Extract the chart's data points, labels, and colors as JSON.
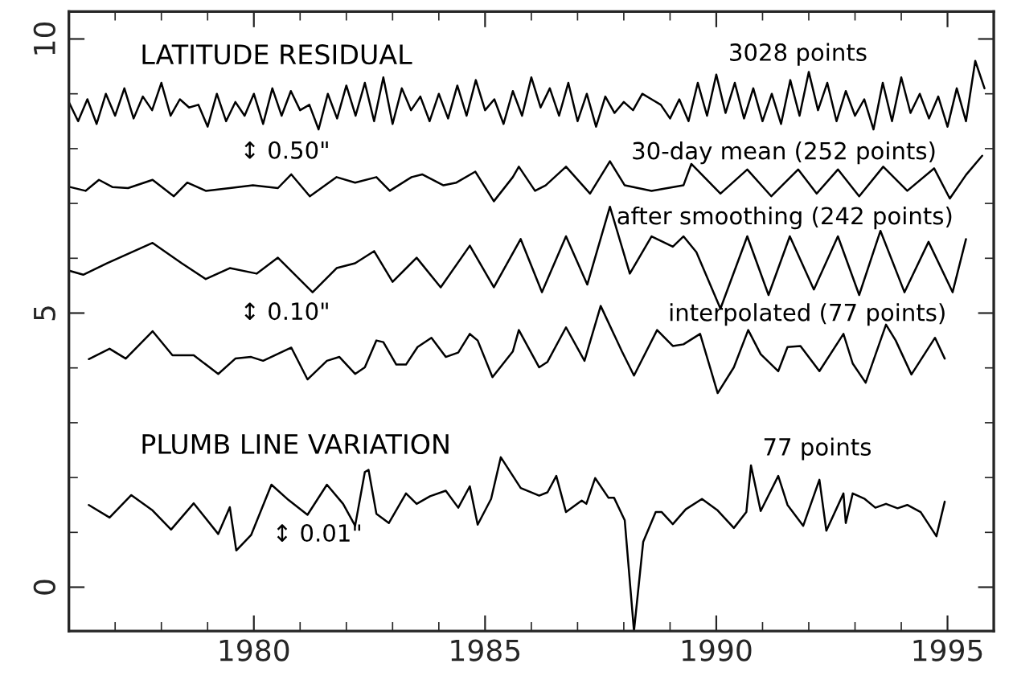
{
  "chart_data": {
    "type": "line",
    "xlim": [
      1976,
      1996
    ],
    "ylim": [
      -0.8,
      10.5
    ],
    "xticks": [
      1980,
      1985,
      1990,
      1995
    ],
    "yticks": [
      0,
      5,
      10
    ],
    "grid": false,
    "marker": "none",
    "line_style": "solid",
    "series": [
      {
        "color": "#000000",
        "x": [
          1976.0,
          1976.2,
          1976.4,
          1976.6,
          1976.8,
          1977.0,
          1977.2,
          1977.4,
          1977.6,
          1977.8,
          1978.0,
          1978.2,
          1978.4,
          1978.6,
          1978.8,
          1979.0,
          1979.2,
          1979.4,
          1979.6,
          1979.8,
          1980.0,
          1980.2,
          1980.4,
          1980.6,
          1980.8,
          1981.0,
          1981.2,
          1981.4,
          1981.6,
          1981.8,
          1982.0,
          1982.2,
          1982.4,
          1982.6,
          1982.8,
          1983.0,
          1983.2,
          1983.4,
          1983.6,
          1983.8,
          1984.0,
          1984.2,
          1984.4,
          1984.6,
          1984.8,
          1985.0,
          1985.2,
          1985.4,
          1985.6,
          1985.8,
          1986.0,
          1986.2,
          1986.4,
          1986.6,
          1986.8,
          1987.0,
          1987.2,
          1987.4,
          1987.6,
          1987.8,
          1988.0,
          1988.2,
          1988.4,
          1988.6,
          1988.8,
          1989.0,
          1989.2,
          1989.4,
          1989.6,
          1989.8,
          1990.0,
          1990.2,
          1990.4,
          1990.6,
          1990.8,
          1991.0,
          1991.2,
          1991.4,
          1991.6,
          1991.8,
          1992.0,
          1992.2,
          1992.4,
          1992.6,
          1992.8,
          1993.0,
          1993.2,
          1993.4,
          1993.6,
          1993.8,
          1994.0,
          1994.2,
          1994.4,
          1994.6,
          1994.8,
          1995.0,
          1995.2,
          1995.4,
          1995.6,
          1995.8
        ],
        "values": [
          8.85,
          8.5,
          8.9,
          8.45,
          9.0,
          8.6,
          9.1,
          8.55,
          8.95,
          8.7,
          9.2,
          8.6,
          8.9,
          8.75,
          8.8,
          8.4,
          9.0,
          8.5,
          8.85,
          8.6,
          9.0,
          8.45,
          9.1,
          8.6,
          9.05,
          8.7,
          8.8,
          8.35,
          9.0,
          8.55,
          9.15,
          8.6,
          9.2,
          8.5,
          9.3,
          8.45,
          9.1,
          8.7,
          8.95,
          8.5,
          9.0,
          8.55,
          9.15,
          8.6,
          9.25,
          8.7,
          8.9,
          8.45,
          9.05,
          8.6,
          9.3,
          8.75,
          9.1,
          8.6,
          9.2,
          8.5,
          9.0,
          8.4,
          8.95,
          8.65,
          8.85,
          8.7,
          9.0,
          8.9,
          8.8,
          8.55,
          8.9,
          8.5,
          9.2,
          8.6,
          9.35,
          8.65,
          9.2,
          8.55,
          9.1,
          8.5,
          9.0,
          8.45,
          9.25,
          8.6,
          9.4,
          8.7,
          9.2,
          8.5,
          9.05,
          8.6,
          8.9,
          8.35,
          9.2,
          8.5,
          9.3,
          8.65,
          9.0,
          8.55,
          8.95,
          8.4,
          9.1,
          8.5,
          9.6,
          9.1
        ]
      },
      {
        "color": "#000000",
        "x": [
          1976.02,
          1976.36,
          1976.65,
          1976.94,
          1977.28,
          1977.81,
          1978.27,
          1978.56,
          1978.96,
          1979.48,
          1979.98,
          1980.52,
          1980.81,
          1981.21,
          1981.79,
          1982.19,
          1982.65,
          1982.94,
          1983.41,
          1983.64,
          1984.1,
          1984.38,
          1984.79,
          1985.19,
          1985.6,
          1985.73,
          1986.08,
          1986.31,
          1986.75,
          1987.27,
          1987.7,
          1988.02,
          1988.6,
          1989.29,
          1989.46,
          1990.09,
          1990.67,
          1991.19,
          1991.77,
          1992.17,
          1992.63,
          1993.09,
          1993.61,
          1994.13,
          1994.71,
          1995.05,
          1995.4,
          1995.75
        ],
        "values": [
          7.3,
          7.23,
          7.43,
          7.3,
          7.28,
          7.43,
          7.13,
          7.38,
          7.23,
          7.28,
          7.33,
          7.28,
          7.53,
          7.13,
          7.48,
          7.38,
          7.48,
          7.23,
          7.48,
          7.53,
          7.33,
          7.38,
          7.58,
          7.04,
          7.48,
          7.67,
          7.23,
          7.33,
          7.67,
          7.18,
          7.77,
          7.33,
          7.23,
          7.33,
          7.72,
          7.18,
          7.62,
          7.13,
          7.62,
          7.18,
          7.62,
          7.13,
          7.67,
          7.23,
          7.64,
          7.09,
          7.52,
          7.87
        ]
      },
      {
        "color": "#000000",
        "x": [
          1976.02,
          1976.31,
          1976.83,
          1977.81,
          1978.44,
          1978.96,
          1979.48,
          1980.06,
          1980.52,
          1981.27,
          1981.79,
          1982.19,
          1982.6,
          1983.0,
          1983.52,
          1984.04,
          1984.67,
          1985.19,
          1985.77,
          1986.23,
          1986.75,
          1987.21,
          1987.7,
          1988.13,
          1988.6,
          1989.06,
          1989.29,
          1989.57,
          1990.09,
          1990.67,
          1991.13,
          1991.59,
          1992.11,
          1992.63,
          1993.09,
          1993.55,
          1994.07,
          1994.59,
          1995.11,
          1995.4
        ],
        "values": [
          5.77,
          5.7,
          5.91,
          6.28,
          5.91,
          5.62,
          5.82,
          5.72,
          6.01,
          5.38,
          5.82,
          5.91,
          6.13,
          5.57,
          6.01,
          5.47,
          6.23,
          5.47,
          6.35,
          5.38,
          6.4,
          5.52,
          6.94,
          5.72,
          6.4,
          6.21,
          6.4,
          6.11,
          5.08,
          6.4,
          5.33,
          6.4,
          5.43,
          6.4,
          5.33,
          6.5,
          5.38,
          6.3,
          5.38,
          6.35
        ]
      },
      {
        "color": "#000000",
        "x": [
          1976.43,
          1976.88,
          1977.23,
          1977.81,
          1978.24,
          1978.7,
          1979.23,
          1979.6,
          1979.94,
          1980.2,
          1980.81,
          1981.16,
          1981.58,
          1981.85,
          1982.19,
          1982.4,
          1982.65,
          1982.8,
          1983.08,
          1983.29,
          1983.54,
          1983.84,
          1984.15,
          1984.42,
          1984.67,
          1984.84,
          1985.16,
          1985.6,
          1985.73,
          1986.17,
          1986.35,
          1986.75,
          1987.15,
          1987.5,
          1987.96,
          1988.22,
          1988.72,
          1989.06,
          1989.29,
          1989.65,
          1990.03,
          1990.38,
          1990.69,
          1990.96,
          1991.34,
          1991.54,
          1991.82,
          1992.23,
          1992.75,
          1992.95,
          1993.23,
          1993.67,
          1993.88,
          1994.22,
          1994.73,
          1994.94
        ],
        "values": [
          4.16,
          4.35,
          4.17,
          4.67,
          4.23,
          4.23,
          3.89,
          4.17,
          4.2,
          4.13,
          4.37,
          3.79,
          4.13,
          4.2,
          3.89,
          4.01,
          4.5,
          4.47,
          4.06,
          4.06,
          4.38,
          4.55,
          4.2,
          4.28,
          4.62,
          4.5,
          3.83,
          4.3,
          4.69,
          4.01,
          4.11,
          4.74,
          4.13,
          5.13,
          4.3,
          3.86,
          4.69,
          4.4,
          4.43,
          4.62,
          3.54,
          4.01,
          4.69,
          4.25,
          3.94,
          4.38,
          4.4,
          3.94,
          4.62,
          4.08,
          3.73,
          4.79,
          4.5,
          3.88,
          4.55,
          4.17
        ]
      },
      {
        "color": "#000000",
        "x": [
          1976.43,
          1976.88,
          1977.35,
          1977.81,
          1978.21,
          1978.7,
          1979.23,
          1979.48,
          1979.62,
          1979.94,
          1980.38,
          1980.75,
          1981.16,
          1981.58,
          1981.93,
          1982.19,
          1982.4,
          1982.48,
          1982.65,
          1982.92,
          1983.29,
          1983.52,
          1983.81,
          1984.15,
          1984.42,
          1984.67,
          1984.84,
          1985.13,
          1985.34,
          1985.77,
          1986.17,
          1986.35,
          1986.54,
          1986.75,
          1987.09,
          1987.19,
          1987.38,
          1987.67,
          1987.79,
          1988.02,
          1988.22,
          1988.42,
          1988.69,
          1988.82,
          1989.06,
          1989.34,
          1989.69,
          1990.03,
          1990.38,
          1990.65,
          1990.75,
          1990.96,
          1991.34,
          1991.54,
          1991.88,
          1992.23,
          1992.38,
          1992.75,
          1992.8,
          1992.95,
          1993.21,
          1993.44,
          1993.67,
          1993.92,
          1994.13,
          1994.42,
          1994.76,
          1994.94
        ],
        "values": [
          1.5,
          1.27,
          1.68,
          1.4,
          1.05,
          1.53,
          0.97,
          1.46,
          0.67,
          0.95,
          1.87,
          1.59,
          1.32,
          1.87,
          1.52,
          1.12,
          2.1,
          2.14,
          1.34,
          1.17,
          1.71,
          1.52,
          1.66,
          1.76,
          1.45,
          1.84,
          1.14,
          1.61,
          2.37,
          1.81,
          1.67,
          1.73,
          2.03,
          1.37,
          1.58,
          1.52,
          1.99,
          1.63,
          1.63,
          1.22,
          -0.8,
          0.83,
          1.37,
          1.37,
          1.15,
          1.42,
          1.61,
          1.4,
          1.08,
          1.37,
          2.22,
          1.39,
          2.03,
          1.5,
          1.12,
          1.96,
          1.03,
          1.71,
          1.17,
          1.71,
          1.61,
          1.45,
          1.52,
          1.44,
          1.5,
          1.37,
          0.93,
          1.56
        ]
      }
    ],
    "annotations": [
      "LATITUDE RESIDUAL",
      "3028 points",
      "↕ 0.50\"",
      "30-day mean (252 points)",
      "after smoothing (242 points)",
      "↕ 0.10\"",
      "interpolated (77 points)",
      "PLUMB LINE VARIATION",
      "77 points",
      "↕ 0.01\""
    ]
  }
}
